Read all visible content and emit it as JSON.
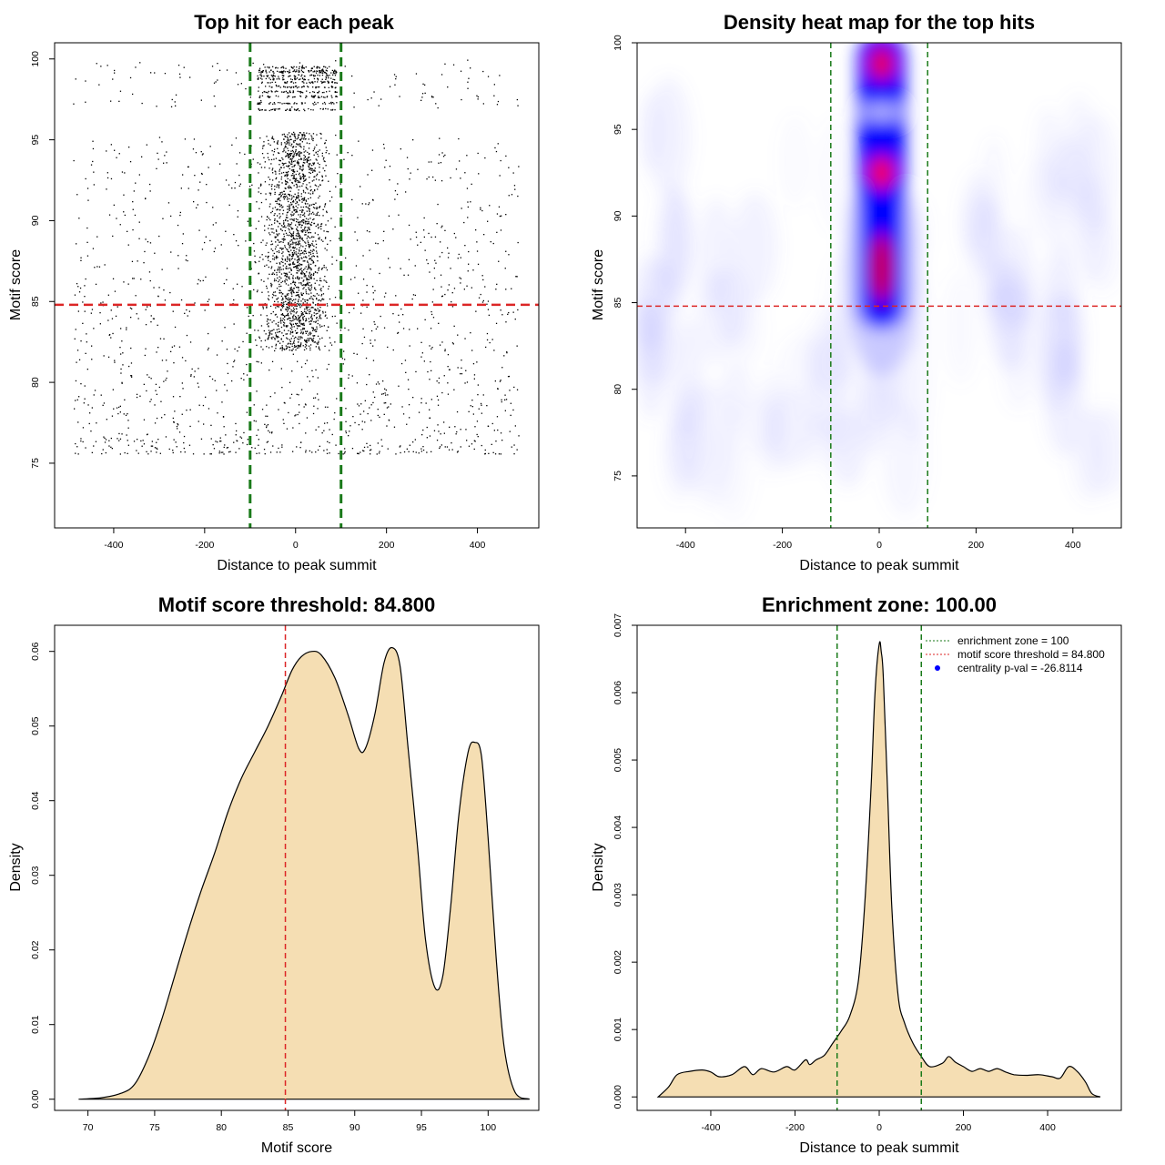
{
  "colors": {
    "threshold_line": "#dc2626",
    "zone_line": "#1a7a1a",
    "density_fill": "#f5deb3",
    "points": "#000000",
    "heat_low": "#ffffff",
    "heat_mid": "#0000ff",
    "heat_high": "#ff0000",
    "legend_dot": "#0000ff"
  },
  "chart_data": [
    {
      "id": "scatter",
      "type": "scatter",
      "title": "Top hit for each peak",
      "xlabel": "Distance to peak summit",
      "ylabel": "Motif score",
      "xlim": [
        -530,
        535
      ],
      "ylim": [
        71,
        101
      ],
      "xticks": [
        -400,
        -200,
        0,
        200,
        400
      ],
      "yticks": [
        75,
        80,
        85,
        90,
        95,
        100
      ],
      "vlines": [
        -100,
        100
      ],
      "hline": 84.8,
      "description_points": "approx. 4000 points; dense central band between -100 and 100 with scores 82-95.5 and 97-100; sparse background across -500..500 with scores 75.5-100"
    },
    {
      "id": "heatmap",
      "type": "heatmap",
      "title": "Density heat map for the top hits",
      "xlabel": "Distance to peak summit",
      "ylabel": "Motif score",
      "xlim": [
        -500,
        500
      ],
      "ylim": [
        72,
        100
      ],
      "xticks": [
        -400,
        -200,
        0,
        200,
        400
      ],
      "yticks": [
        75,
        80,
        85,
        90,
        95,
        100
      ],
      "vlines": [
        -100,
        100
      ],
      "hline": 84.8,
      "hotspots": [
        {
          "x": 5,
          "y": 98.8,
          "intensity": 0.95
        },
        {
          "x": 5,
          "y": 92.5,
          "intensity": 1.0
        },
        {
          "x": 5,
          "y": 87,
          "intensity": 0.8
        }
      ]
    },
    {
      "id": "score-density",
      "type": "area",
      "title": "Motif score threshold: 84.800",
      "xlabel": "Motif score",
      "ylabel": "Density",
      "xlim": [
        67.5,
        103.8
      ],
      "ylim": [
        -0.0015,
        0.0635
      ],
      "xticks": [
        70,
        75,
        80,
        85,
        90,
        95,
        100
      ],
      "yticks": [
        0.0,
        0.01,
        0.02,
        0.03,
        0.04,
        0.05,
        0.06
      ],
      "ytick_labels": [
        "0.00",
        "0.01",
        "0.02",
        "0.03",
        "0.04",
        "0.05",
        "0.06"
      ],
      "vline": 84.8,
      "x": [
        69.3,
        71,
        72.5,
        73.5,
        74.5,
        75.5,
        76.5,
        77.5,
        78.5,
        79.5,
        80.5,
        81.5,
        82.5,
        83.5,
        84.5,
        85.3,
        86,
        86.8,
        87.5,
        88.5,
        89.5,
        90.3,
        90.8,
        91.5,
        92.2,
        92.8,
        93.4,
        94,
        94.7,
        95.3,
        96,
        96.6,
        97.2,
        97.8,
        98.5,
        99,
        99.5,
        100,
        100.6,
        101.2,
        102,
        103.1
      ],
      "values": [
        0.0,
        0.0002,
        0.0008,
        0.002,
        0.0055,
        0.0105,
        0.0165,
        0.0225,
        0.028,
        0.033,
        0.0385,
        0.043,
        0.0465,
        0.05,
        0.054,
        0.0575,
        0.0593,
        0.06,
        0.0595,
        0.0565,
        0.0515,
        0.047,
        0.047,
        0.0515,
        0.0585,
        0.0605,
        0.058,
        0.047,
        0.034,
        0.0215,
        0.015,
        0.0165,
        0.026,
        0.038,
        0.0465,
        0.0478,
        0.046,
        0.035,
        0.019,
        0.007,
        0.001,
        0.0
      ]
    },
    {
      "id": "distance-density",
      "type": "area",
      "title": "Enrichment zone: 100.00",
      "xlabel": "Distance to peak summit",
      "ylabel": "Density",
      "xlim": [
        -575,
        575
      ],
      "ylim": [
        -0.0002,
        0.007
      ],
      "xticks": [
        -400,
        -200,
        0,
        200,
        400
      ],
      "yticks": [
        0.0,
        0.001,
        0.002,
        0.003,
        0.004,
        0.005,
        0.006,
        0.007
      ],
      "ytick_labels": [
        "0.000",
        "0.001",
        "0.002",
        "0.003",
        "0.004",
        "0.005",
        "0.006",
        "0.007"
      ],
      "vlines": [
        -100,
        100
      ],
      "x": [
        -525,
        -500,
        -480,
        -450,
        -420,
        -400,
        -380,
        -350,
        -320,
        -300,
        -280,
        -250,
        -220,
        -200,
        -175,
        -165,
        -150,
        -130,
        -110,
        -90,
        -70,
        -50,
        -35,
        -20,
        -10,
        0,
        5,
        10,
        20,
        30,
        45,
        60,
        80,
        100,
        120,
        150,
        165,
        180,
        200,
        220,
        240,
        260,
        280,
        300,
        320,
        350,
        380,
        410,
        430,
        450,
        470,
        490,
        505,
        525
      ],
      "values": [
        0.0,
        0.00015,
        0.00033,
        0.00038,
        0.0004,
        0.00037,
        0.0003,
        0.00033,
        0.00045,
        0.00033,
        0.00042,
        0.00037,
        0.00045,
        0.0004,
        0.00055,
        0.00048,
        0.00055,
        0.00062,
        0.0008,
        0.00098,
        0.0012,
        0.0017,
        0.0028,
        0.0045,
        0.006,
        0.00672,
        0.0066,
        0.0062,
        0.0045,
        0.0028,
        0.0015,
        0.0011,
        0.0008,
        0.0006,
        0.00045,
        0.0005,
        0.0006,
        0.00052,
        0.00045,
        0.00038,
        0.00042,
        0.00038,
        0.00042,
        0.00037,
        0.00033,
        0.00032,
        0.00033,
        0.0003,
        0.00028,
        0.00045,
        0.00038,
        0.00022,
        5e-05,
        0.0
      ],
      "legend": [
        {
          "label": "enrichment zone = 100",
          "style": "dotted",
          "color": "#1a7a1a"
        },
        {
          "label": "motif score threshold = 84.800",
          "style": "dotted",
          "color": "#dc2626"
        },
        {
          "label": "centrality p-val = -26.8114",
          "style": "point",
          "color": "#0000ff"
        }
      ]
    }
  ]
}
